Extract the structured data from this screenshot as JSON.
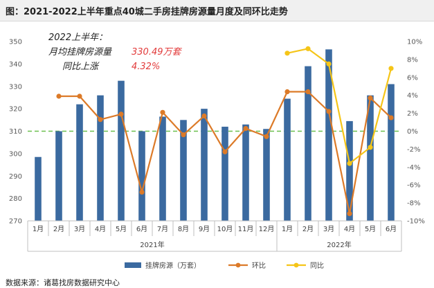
{
  "title": "图：2021-2022上半年重点40城二手房挂牌房源量月度及同环比走势",
  "source": "数据来源：诸葛找房数据研究中心",
  "chart_data": {
    "type": "bar",
    "categories": [
      "1月",
      "2月",
      "3月",
      "4月",
      "5月",
      "6月",
      "7月",
      "8月",
      "9月",
      "10月",
      "11月",
      "12月",
      "1月",
      "2月",
      "3月",
      "4月",
      "5月",
      "6月"
    ],
    "year_groups": [
      {
        "label": "2021年",
        "start": 0,
        "end": 11
      },
      {
        "label": "2022年",
        "start": 12,
        "end": 17
      }
    ],
    "series": [
      {
        "name": "挂牌房源（万套）",
        "type": "bar",
        "axis": "left",
        "color": "#3b6aa0",
        "values": [
          298.5,
          310,
          322,
          326,
          332.5,
          310,
          316.5,
          315,
          320,
          312,
          313,
          311,
          324.5,
          339,
          346.5,
          314.5,
          326,
          331
        ]
      },
      {
        "name": "环比",
        "type": "line",
        "axis": "right",
        "color": "#dc7a28",
        "values": [
          null,
          3.9,
          3.9,
          1.3,
          1.9,
          -6.8,
          2.1,
          -0.4,
          1.7,
          -2.3,
          0.3,
          -0.6,
          4.4,
          4.4,
          2.2,
          -9.2,
          3.7,
          1.5
        ]
      },
      {
        "name": "同比",
        "type": "line",
        "axis": "right",
        "color": "#f5c518",
        "values": [
          null,
          null,
          null,
          null,
          null,
          null,
          null,
          null,
          null,
          null,
          null,
          null,
          8.7,
          9.2,
          7.5,
          -3.6,
          -1.8,
          7.0
        ]
      }
    ],
    "y_left": {
      "min": 270,
      "max": 350,
      "step": 10
    },
    "y_right": {
      "min": -10,
      "max": 10,
      "step": 2,
      "suffix": "%"
    },
    "reference_line": {
      "axis": "right",
      "value": 0,
      "color": "#6bbf4e",
      "style": "dashed"
    },
    "legend_position": "bottom",
    "annotations": {
      "line1": "2022上半年：",
      "line2_label": "月均挂牌房源量",
      "line2_value": "330.49万套",
      "line3_label": "同比上涨",
      "line3_value": "4.32%"
    }
  }
}
